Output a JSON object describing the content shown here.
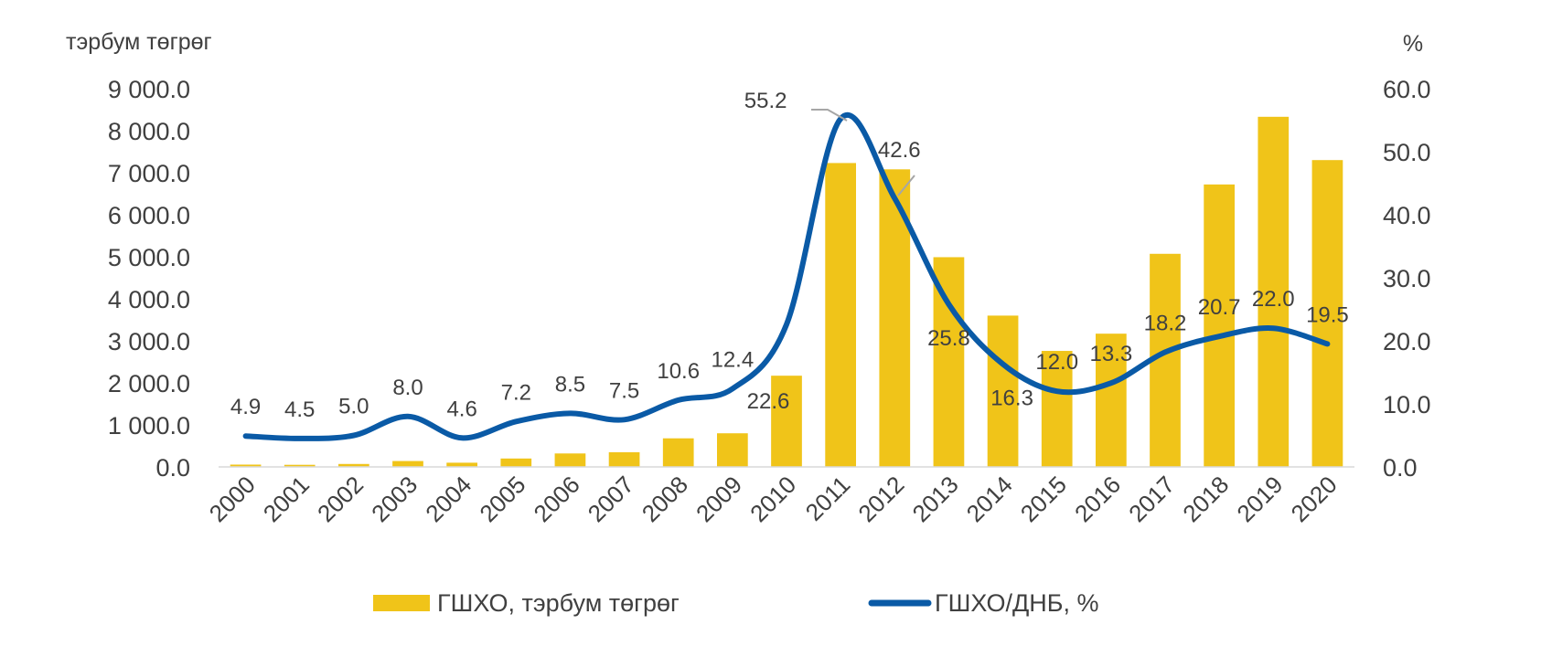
{
  "chart_data": {
    "type": "bar",
    "title": "",
    "y_left_label": "тэрбум төгрөг",
    "y_right_label": "%",
    "categories": [
      "2000",
      "2001",
      "2002",
      "2003",
      "2004",
      "2005",
      "2006",
      "2007",
      "2008",
      "2009",
      "2010",
      "2011",
      "2012",
      "2013",
      "2014",
      "2015",
      "2016",
      "2017",
      "2018",
      "2019",
      "2020"
    ],
    "y_left_ticks": [
      "0.0",
      "1 000.0",
      "2 000.0",
      "3 000.0",
      "4 000.0",
      "5 000.0",
      "6 000.0",
      "7 000.0",
      "8 000.0",
      "9 000.0"
    ],
    "y_right_ticks": [
      "0.0",
      "10.0",
      "20.0",
      "30.0",
      "40.0",
      "50.0",
      "60.0"
    ],
    "ylim_left": [
      0,
      9000
    ],
    "ylim_right": [
      0,
      60
    ],
    "series": [
      {
        "name": "ГШХО, тэрбум төгрөг",
        "type": "bar",
        "axis": "left",
        "color": "#F0C419",
        "values": [
          55,
          50,
          70,
          140,
          100,
          200,
          320,
          350,
          680,
          800,
          2170,
          7230,
          7080,
          4990,
          3600,
          2760,
          3170,
          5070,
          6720,
          8330,
          7300
        ]
      },
      {
        "name": "ГШХО/ДНБ, %",
        "type": "line",
        "axis": "right",
        "color": "#0A5AA6",
        "values": [
          4.9,
          4.5,
          5.0,
          8.0,
          4.6,
          7.2,
          8.5,
          7.5,
          10.6,
          12.4,
          22.6,
          55.2,
          42.6,
          25.8,
          16.3,
          12.0,
          13.3,
          18.2,
          20.7,
          22.0,
          19.5
        ],
        "labels": [
          "4.9",
          "4.5",
          "5.0",
          "8.0",
          "4.6",
          "7.2",
          "8.5",
          "7.5",
          "10.6",
          "12.4",
          "22.6",
          "55.2",
          "42.6",
          "25.8",
          "16.3",
          "12.0",
          "13.3",
          "18.2",
          "20.7",
          "22.0",
          "19.5"
        ]
      }
    ],
    "legend": {
      "position": "bottom",
      "items": [
        "ГШХО, тэрбум төгрөг",
        "ГШХО/ДНБ, %"
      ]
    },
    "grid": false
  }
}
